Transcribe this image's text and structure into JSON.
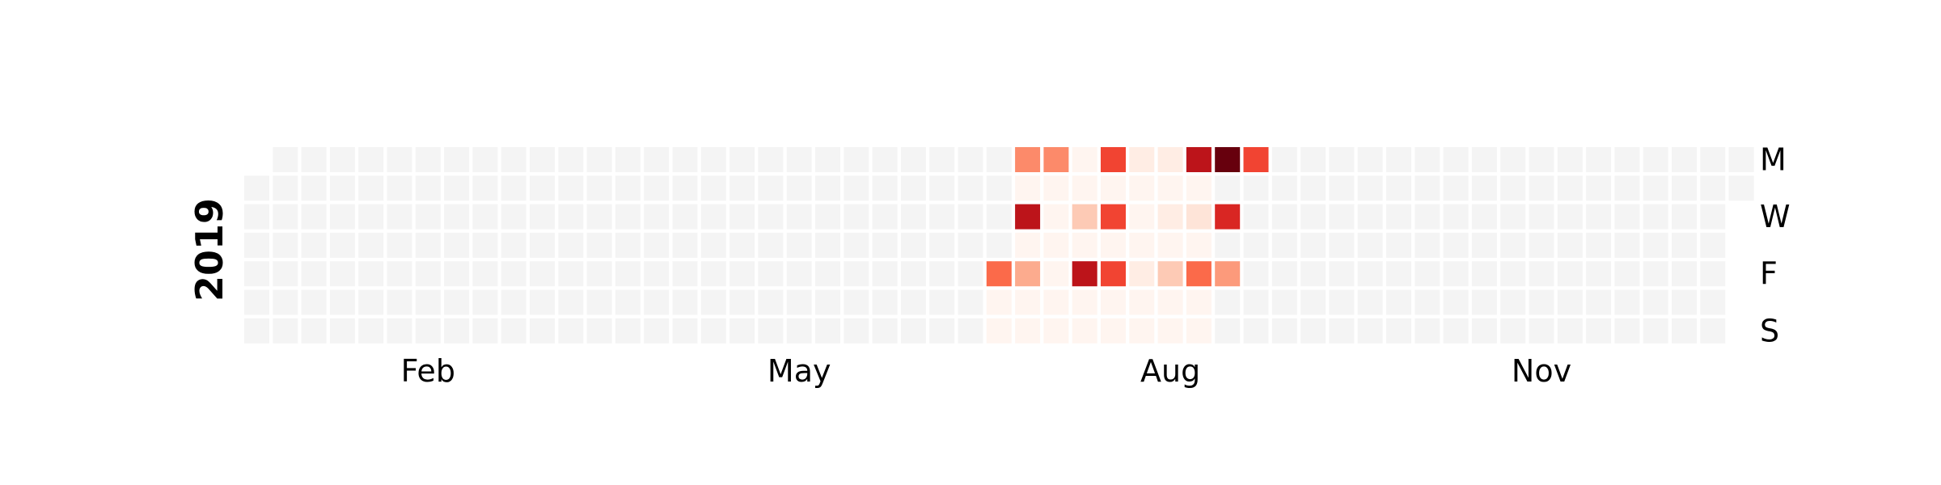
{
  "chart_data": {
    "type": "heatmap",
    "year": "2019",
    "year_label": "2019",
    "first_day": "2019-01-01",
    "last_day": "2019-12-31",
    "row_labels": [
      "M",
      "W",
      "F",
      "S"
    ],
    "row_label_days": [
      "Mon",
      "Wed",
      "Fri",
      "Sun"
    ],
    "month_labels": [
      "Feb",
      "May",
      "Aug",
      "Nov"
    ],
    "empty_color": "#f4f4f4",
    "colormap": "Reds",
    "color_stops": [
      "#fff5f0",
      "#fee0d2",
      "#fcbba1",
      "#fc9272",
      "#fb6a4a",
      "#ef3b2c",
      "#cb181d",
      "#a50f15",
      "#67000d"
    ],
    "value_range": [
      0,
      10
    ],
    "data_start": "2019-07-05",
    "data_end": "2019-08-25",
    "values": {
      "2019-07-05": 5,
      "2019-07-06": 0,
      "2019-07-07": 0,
      "2019-07-08": 4,
      "2019-07-09": 0,
      "2019-07-10": 8,
      "2019-07-11": 0,
      "2019-07-12": 3,
      "2019-07-13": 0,
      "2019-07-14": 0,
      "2019-07-15": 4,
      "2019-07-16": 0,
      "2019-07-17": 0,
      "2019-07-18": 0,
      "2019-07-19": 0,
      "2019-07-20": 0,
      "2019-07-21": 0,
      "2019-07-22": 0,
      "2019-07-23": 0,
      "2019-07-24": 2,
      "2019-07-25": 0,
      "2019-07-26": 8,
      "2019-07-27": 0,
      "2019-07-28": 0,
      "2019-07-29": 6,
      "2019-07-30": 0,
      "2019-07-31": 6,
      "2019-08-01": 0,
      "2019-08-02": 6,
      "2019-08-03": 0,
      "2019-08-04": 0,
      "2019-08-05": 0.5,
      "2019-08-06": 0,
      "2019-08-07": 0,
      "2019-08-08": 0,
      "2019-08-09": 0.5,
      "2019-08-10": 0,
      "2019-08-11": 0,
      "2019-08-12": 0.5,
      "2019-08-13": 0,
      "2019-08-14": 0.5,
      "2019-08-15": 0,
      "2019-08-16": 2,
      "2019-08-17": 0,
      "2019-08-18": 0,
      "2019-08-19": 8,
      "2019-08-20": 0,
      "2019-08-21": 1,
      "2019-08-22": 0,
      "2019-08-23": 5,
      "2019-08-24": 0,
      "2019-08-25": 0,
      "2019-08-26": 10,
      "2019-08-28": 7,
      "2019-08-30": 3.5,
      "2019-09-02": 6
    },
    "grid": false
  }
}
